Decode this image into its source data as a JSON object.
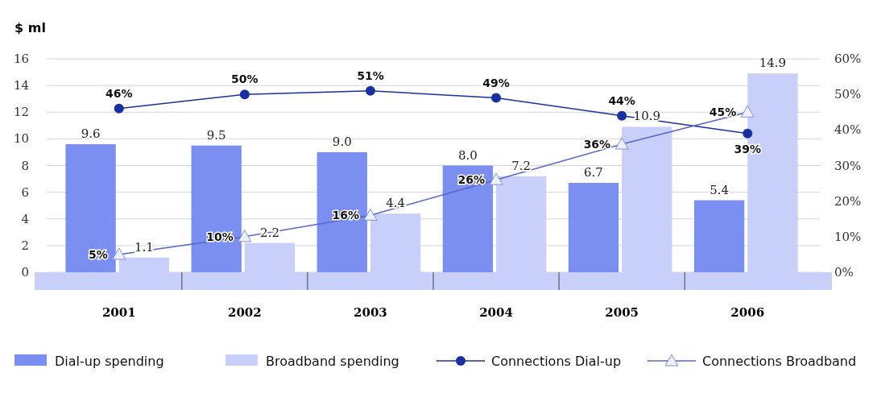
{
  "chart_data": {
    "type": "bar",
    "ylabel": "$ ml",
    "categories": [
      "2001",
      "2002",
      "2003",
      "2004",
      "2005",
      "2006"
    ],
    "series": [
      {
        "name": "Dial-up spending",
        "color": "#7b8ff0",
        "values": [
          9.6,
          9.5,
          9.0,
          8.0,
          6.7,
          5.4
        ],
        "value_labels": [
          "9.6",
          "9.5",
          "9.0",
          "8.0",
          "6.7",
          "5.4"
        ]
      },
      {
        "name": "Broadband spending",
        "color": "#c8cff8",
        "values": [
          1.1,
          2.2,
          4.4,
          7.2,
          10.9,
          14.9
        ],
        "value_labels": [
          "1.1",
          "2.2",
          "4.4",
          "7.2",
          "10.9",
          "14.9"
        ]
      },
      {
        "name": "Connections Dial-up",
        "type": "line",
        "axis": "y2",
        "marker": "circle",
        "color": "#1a2fa0",
        "values": [
          46,
          50,
          51,
          49,
          44,
          39
        ],
        "value_labels": [
          "46%",
          "50%",
          "51%",
          "49%",
          "44%",
          "39%"
        ]
      },
      {
        "name": "Connections Broadband",
        "type": "line",
        "axis": "y2",
        "marker": "triangle",
        "color": "#5566cc",
        "values": [
          5,
          10,
          16,
          26,
          36,
          45
        ],
        "value_labels": [
          "5%",
          "10%",
          "16%",
          "26%",
          "36%",
          "45%"
        ]
      }
    ],
    "ylim": [
      0,
      16
    ],
    "yticks": [
      0,
      2,
      4,
      6,
      8,
      10,
      12,
      14,
      16
    ],
    "y2lim": [
      0,
      60
    ],
    "y2ticks": [
      {
        "value": 0,
        "label": "0%"
      },
      {
        "value": 10,
        "label": "10%"
      },
      {
        "value": 20,
        "label": "20%"
      },
      {
        "value": 30,
        "label": "30%"
      },
      {
        "value": 40,
        "label": "40%"
      },
      {
        "value": 50,
        "label": "50%"
      },
      {
        "value": 60,
        "label": "60%"
      }
    ],
    "grid": "y",
    "legend": "bottom"
  }
}
